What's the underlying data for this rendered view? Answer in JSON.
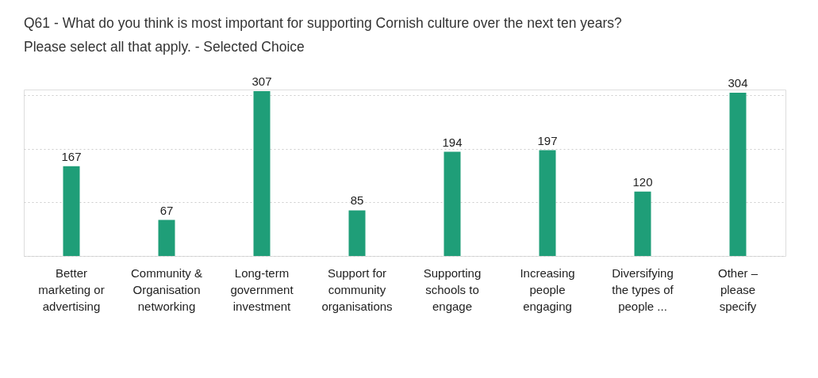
{
  "chart_data": {
    "type": "bar",
    "title": "Q61 - What do you think is most important for supporting Cornish culture over the next ten years?\nPlease select all that apply. - Selected Choice",
    "categories": [
      "Better\nmarketing or\nadvertising",
      "Community &\nOrganisation\nnetworking",
      "Long-term\ngovernment\ninvestment",
      "Support for\ncommunity\norganisations",
      "Supporting\nschools to\nengage",
      "Increasing\npeople\nengaging",
      "Diversifying\nthe types of\npeople ...",
      "Other –\nplease\nspecify"
    ],
    "values": [
      167,
      67,
      307,
      85,
      194,
      197,
      120,
      304
    ],
    "color": "#1f9e78",
    "ylim": [
      0,
      310
    ],
    "yticks": [
      {
        "value": 0,
        "label": null
      },
      {
        "value": 100,
        "label": null
      },
      {
        "value": 200,
        "label": null
      },
      {
        "value": 300,
        "label": null
      }
    ],
    "grid": "y",
    "tick_labels": "x",
    "data_labels": true
  }
}
